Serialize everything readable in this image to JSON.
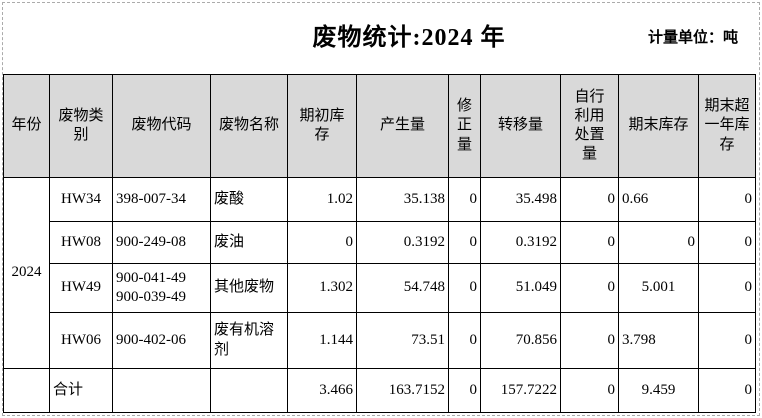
{
  "header": {
    "title": "废物统计:2024 年",
    "unit_label": "计量单位：吨"
  },
  "table": {
    "columns": [
      {
        "key": "year",
        "label": "年份"
      },
      {
        "key": "category",
        "label": "废物类\n别"
      },
      {
        "key": "code",
        "label": "废物代码"
      },
      {
        "key": "name",
        "label": "废物名称"
      },
      {
        "key": "opening",
        "label": "期初库\n存"
      },
      {
        "key": "generated",
        "label": "产生量"
      },
      {
        "key": "corrected",
        "label": "修\n正\n量"
      },
      {
        "key": "transferred",
        "label": "转移量"
      },
      {
        "key": "selfDisposed",
        "label": "自行\n利用\n处置\n量"
      },
      {
        "key": "closing",
        "label": "期末库存"
      },
      {
        "key": "overYear",
        "label": "期末超\n一年库\n存"
      }
    ],
    "year": "2024",
    "rows": [
      {
        "category": "HW34",
        "code": "398-007-34",
        "name": "废酸",
        "opening": "1.02",
        "generated": "35.138",
        "corrected": "0",
        "transferred": "35.498",
        "selfDisposed": "0",
        "closing": "0.66",
        "overYear": "0"
      },
      {
        "category": "HW08",
        "code": "900-249-08",
        "name": "废油",
        "opening": "0",
        "generated": "0.3192",
        "corrected": "0",
        "transferred": "0.3192",
        "selfDisposed": "0",
        "closing": "0",
        "overYear": "0"
      },
      {
        "category": "HW49",
        "code": "900-041-49\n900-039-49",
        "name": "其他废物",
        "opening": "1.302",
        "generated": "54.748",
        "corrected": "0",
        "transferred": "51.049",
        "selfDisposed": "0",
        "closing": "5.001",
        "overYear": "0"
      },
      {
        "category": "HW06",
        "code": "900-402-06",
        "name": "废有机溶剂",
        "opening": "1.144",
        "generated": "73.51",
        "corrected": "0",
        "transferred": "70.856",
        "selfDisposed": "0",
        "closing": "3.798",
        "overYear": "0"
      }
    ],
    "total": {
      "label": "合计",
      "code": "",
      "name": "",
      "opening": "3.466",
      "generated": "163.7152",
      "corrected": "0",
      "transferred": "157.7222",
      "selfDisposed": "0",
      "closing": "9.459",
      "overYear": "0"
    }
  },
  "colors": {
    "header_bg": "#d9d9d9",
    "border": "#000000",
    "page_bg": "#ffffff",
    "print_area_dash": "#ababab"
  }
}
